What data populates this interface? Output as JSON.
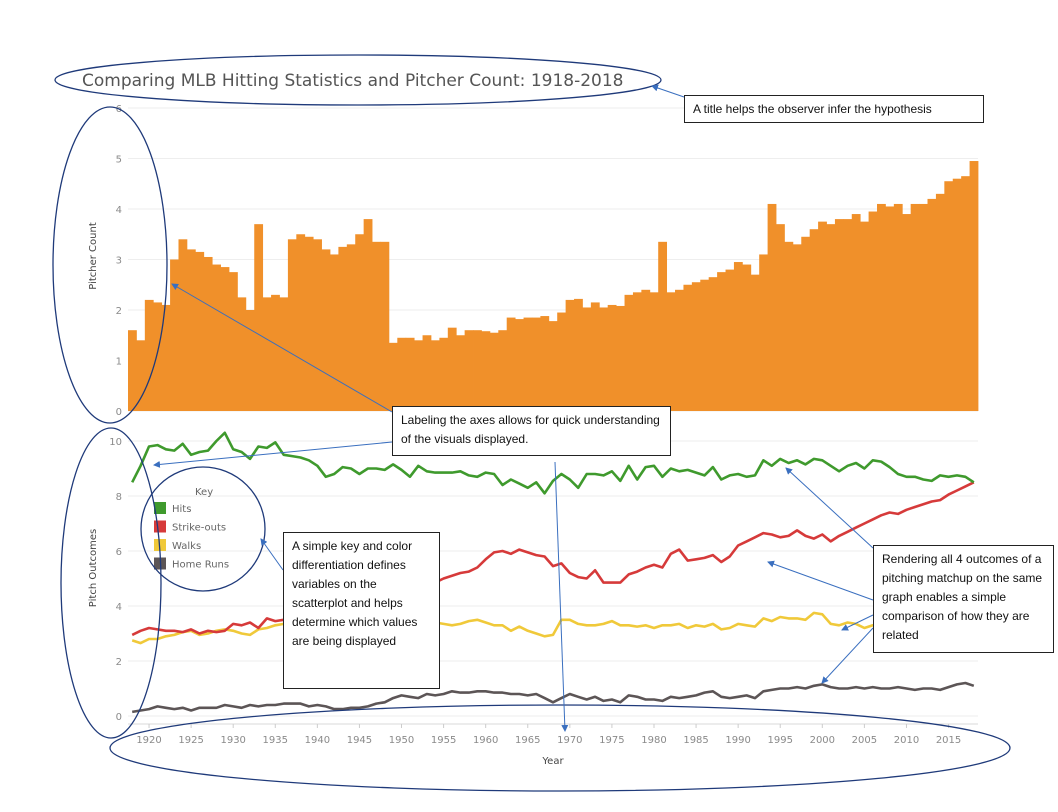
{
  "chart_data": [
    {
      "type": "bar",
      "title": "Comparing MLB Hitting Statistics and Pitcher Count: 1918-2018",
      "ylabel": "Pitcher Count",
      "ylim": [
        0,
        6
      ],
      "yticks": [
        "0",
        "1",
        "2",
        "3",
        "4",
        "5",
        "6"
      ],
      "bar_color": "#f0902a",
      "x": [
        1918,
        1919,
        1920,
        1921,
        1922,
        1923,
        1924,
        1925,
        1926,
        1927,
        1928,
        1929,
        1930,
        1931,
        1932,
        1933,
        1934,
        1935,
        1936,
        1937,
        1938,
        1939,
        1940,
        1941,
        1942,
        1943,
        1944,
        1945,
        1946,
        1947,
        1948,
        1949,
        1950,
        1951,
        1952,
        1953,
        1954,
        1955,
        1956,
        1957,
        1958,
        1959,
        1960,
        1961,
        1962,
        1963,
        1964,
        1965,
        1966,
        1967,
        1968,
        1969,
        1970,
        1971,
        1972,
        1973,
        1974,
        1975,
        1976,
        1977,
        1978,
        1979,
        1980,
        1981,
        1982,
        1983,
        1984,
        1985,
        1986,
        1987,
        1988,
        1989,
        1990,
        1991,
        1992,
        1993,
        1994,
        1995,
        1996,
        1997,
        1998,
        1999,
        2000,
        2001,
        2002,
        2003,
        2004,
        2005,
        2006,
        2007,
        2008,
        2009,
        2010,
        2011,
        2012,
        2013,
        2014,
        2015,
        2016,
        2017,
        2018
      ],
      "values": [
        1.6,
        1.4,
        2.2,
        2.15,
        2.1,
        3.0,
        3.4,
        3.2,
        3.15,
        3.05,
        2.9,
        2.85,
        2.75,
        2.25,
        2.0,
        3.7,
        2.25,
        2.3,
        2.25,
        3.4,
        3.5,
        3.45,
        3.4,
        3.2,
        3.1,
        3.25,
        3.3,
        3.5,
        3.8,
        3.35,
        3.35,
        1.35,
        1.45,
        1.45,
        1.4,
        1.5,
        1.4,
        1.45,
        1.65,
        1.5,
        1.6,
        1.6,
        1.58,
        1.55,
        1.6,
        1.85,
        1.82,
        1.85,
        1.85,
        1.88,
        1.78,
        1.95,
        2.2,
        2.22,
        2.05,
        2.15,
        2.05,
        2.1,
        2.08,
        2.3,
        2.35,
        2.4,
        2.35,
        3.35,
        2.35,
        2.4,
        2.5,
        2.55,
        2.6,
        2.65,
        2.75,
        2.8,
        2.95,
        2.9,
        2.7,
        3.1,
        4.1,
        3.7,
        3.35,
        3.3,
        3.45,
        3.6,
        3.75,
        3.7,
        3.8,
        3.8,
        3.9,
        3.75,
        3.95,
        4.1,
        4.05,
        4.1,
        3.9,
        4.1,
        4.1,
        4.2,
        4.3,
        4.55,
        4.6,
        4.65,
        4.95
      ]
    },
    {
      "type": "line",
      "xlabel": "Year",
      "ylabel": "Pitch Outcomes",
      "ylim": [
        0,
        10
      ],
      "yticks": [
        "0",
        "2",
        "4",
        "6",
        "8",
        "10"
      ],
      "xlim": [
        1918,
        2018
      ],
      "xticks": [
        "1920",
        "1925",
        "1930",
        "1935",
        "1940",
        "1945",
        "1950",
        "1955",
        "1960",
        "1965",
        "1970",
        "1975",
        "1980",
        "1985",
        "1990",
        "1995",
        "2000",
        "2005",
        "2010",
        "2015"
      ],
      "x": [
        1918,
        1919,
        1920,
        1921,
        1922,
        1923,
        1924,
        1925,
        1926,
        1927,
        1928,
        1929,
        1930,
        1931,
        1932,
        1933,
        1934,
        1935,
        1936,
        1937,
        1938,
        1939,
        1940,
        1941,
        1942,
        1943,
        1944,
        1945,
        1946,
        1947,
        1948,
        1949,
        1950,
        1951,
        1952,
        1953,
        1954,
        1955,
        1956,
        1957,
        1958,
        1959,
        1960,
        1961,
        1962,
        1963,
        1964,
        1965,
        1966,
        1967,
        1968,
        1969,
        1970,
        1971,
        1972,
        1973,
        1974,
        1975,
        1976,
        1977,
        1978,
        1979,
        1980,
        1981,
        1982,
        1983,
        1984,
        1985,
        1986,
        1987,
        1988,
        1989,
        1990,
        1991,
        1992,
        1993,
        1994,
        1995,
        1996,
        1997,
        1998,
        1999,
        2000,
        2001,
        2002,
        2003,
        2004,
        2005,
        2006,
        2007,
        2008,
        2009,
        2010,
        2011,
        2012,
        2013,
        2014,
        2015,
        2016,
        2017,
        2018
      ],
      "series": [
        {
          "name": "Hits",
          "color": "#3f9a2d",
          "values": [
            8.5,
            9.1,
            9.8,
            9.85,
            9.7,
            9.65,
            9.9,
            9.5,
            9.6,
            9.65,
            10.0,
            10.3,
            9.7,
            9.6,
            9.35,
            9.8,
            9.75,
            9.95,
            9.5,
            9.45,
            9.4,
            9.3,
            9.1,
            8.7,
            8.8,
            9.05,
            9.0,
            8.8,
            9.0,
            9.0,
            8.95,
            9.15,
            8.95,
            8.7,
            9.1,
            8.9,
            8.85,
            8.85,
            8.85,
            8.9,
            8.75,
            8.7,
            8.85,
            8.8,
            8.4,
            8.6,
            8.45,
            8.3,
            8.5,
            8.1,
            8.55,
            8.8,
            8.6,
            8.3,
            8.8,
            8.8,
            8.75,
            8.9,
            8.55,
            9.1,
            8.6,
            9.05,
            9.1,
            8.7,
            9.0,
            8.9,
            8.95,
            8.85,
            8.75,
            9.05,
            8.6,
            8.75,
            8.8,
            8.7,
            8.75,
            9.3,
            9.1,
            9.35,
            9.2,
            9.3,
            9.15,
            9.35,
            9.3,
            9.1,
            8.9,
            9.1,
            9.2,
            9.0,
            9.3,
            9.25,
            9.05,
            8.8,
            8.7,
            8.7,
            8.6,
            8.55,
            8.75,
            8.7,
            8.75,
            8.7,
            8.5
          ]
        },
        {
          "name": "Strike-outs",
          "color": "#d63a3a",
          "values": [
            2.95,
            3.1,
            3.2,
            3.15,
            3.1,
            3.1,
            3.05,
            3.15,
            3.0,
            3.1,
            3.05,
            3.1,
            3.35,
            3.3,
            3.4,
            3.2,
            3.55,
            3.45,
            3.5,
            3.7,
            3.75,
            3.6,
            3.6,
            3.55,
            3.5,
            3.7,
            3.7,
            3.6,
            3.75,
            3.95,
            3.75,
            3.9,
            4.1,
            4.35,
            4.5,
            4.7,
            4.85,
            5.0,
            5.1,
            5.2,
            5.25,
            5.4,
            5.7,
            5.95,
            6.0,
            5.9,
            6.05,
            5.95,
            5.85,
            5.8,
            5.45,
            5.55,
            5.2,
            5.05,
            5.0,
            5.3,
            4.85,
            4.85,
            4.85,
            5.15,
            5.25,
            5.4,
            5.5,
            5.4,
            5.9,
            6.05,
            5.65,
            5.7,
            5.75,
            5.85,
            5.6,
            5.8,
            6.2,
            6.35,
            6.5,
            6.65,
            6.6,
            6.5,
            6.55,
            6.75,
            6.55,
            6.45,
            6.6,
            6.35,
            6.55,
            6.7,
            6.85,
            7.0,
            7.15,
            7.3,
            7.4,
            7.35,
            7.5,
            7.6,
            7.7,
            7.8,
            7.85,
            8.05,
            8.2,
            8.35,
            8.5
          ]
        },
        {
          "name": "Walks",
          "color": "#f0c93a",
          "values": [
            2.75,
            2.65,
            2.8,
            2.8,
            2.9,
            2.95,
            3.05,
            3.1,
            2.95,
            3.0,
            3.1,
            3.15,
            3.1,
            3.0,
            2.95,
            3.15,
            3.2,
            3.3,
            3.35,
            3.45,
            3.6,
            3.7,
            3.55,
            3.5,
            3.6,
            3.45,
            3.5,
            3.4,
            3.6,
            3.5,
            3.4,
            3.5,
            3.55,
            3.6,
            3.5,
            3.45,
            3.4,
            3.35,
            3.3,
            3.35,
            3.45,
            3.5,
            3.4,
            3.3,
            3.3,
            3.1,
            3.25,
            3.1,
            3.0,
            2.9,
            2.95,
            3.5,
            3.5,
            3.35,
            3.3,
            3.3,
            3.35,
            3.45,
            3.3,
            3.3,
            3.25,
            3.3,
            3.2,
            3.3,
            3.3,
            3.35,
            3.2,
            3.3,
            3.25,
            3.35,
            3.15,
            3.2,
            3.35,
            3.3,
            3.25,
            3.55,
            3.45,
            3.6,
            3.55,
            3.55,
            3.5,
            3.75,
            3.7,
            3.35,
            3.3,
            3.4,
            3.35,
            3.2,
            3.3,
            3.3,
            3.25,
            3.3,
            3.3,
            3.2,
            3.15,
            3.3,
            3.2,
            3.3,
            3.2,
            3.25,
            3.3
          ]
        },
        {
          "name": "Home Runs",
          "color": "#5c5556",
          "values": [
            0.15,
            0.2,
            0.25,
            0.35,
            0.3,
            0.25,
            0.3,
            0.2,
            0.3,
            0.3,
            0.3,
            0.4,
            0.35,
            0.3,
            0.4,
            0.35,
            0.4,
            0.4,
            0.45,
            0.45,
            0.45,
            0.35,
            0.4,
            0.35,
            0.25,
            0.25,
            0.3,
            0.3,
            0.35,
            0.45,
            0.5,
            0.65,
            0.75,
            0.7,
            0.65,
            0.8,
            0.75,
            0.8,
            0.9,
            0.85,
            0.85,
            0.9,
            0.9,
            0.85,
            0.85,
            0.8,
            0.8,
            0.75,
            0.8,
            0.65,
            0.5,
            0.65,
            0.8,
            0.7,
            0.6,
            0.7,
            0.55,
            0.6,
            0.5,
            0.75,
            0.7,
            0.6,
            0.6,
            0.55,
            0.7,
            0.65,
            0.7,
            0.75,
            0.85,
            0.9,
            0.7,
            0.65,
            0.7,
            0.75,
            0.65,
            0.9,
            0.95,
            1.0,
            1.0,
            1.05,
            1.0,
            1.1,
            1.15,
            1.05,
            1.0,
            1.0,
            1.05,
            1.0,
            1.05,
            1.0,
            1.0,
            1.05,
            1.0,
            0.95,
            1.0,
            1.0,
            0.95,
            1.05,
            1.15,
            1.2,
            1.1
          ]
        }
      ],
      "legend": {
        "title": "Key",
        "position": "left"
      }
    }
  ],
  "annotations": {
    "title_note": "A title helps the observer infer the hypothesis",
    "axes_note": "Labeling the axes allows for quick understanding of the visuals displayed.",
    "key_note": "A simple key and color differentiation defines variables on the scatterplot and helps determine which values are being displayed",
    "outcomes_note": "Rendering all 4 outcomes of a pitching matchup on the same graph enables a simple comparison of how they are related"
  }
}
